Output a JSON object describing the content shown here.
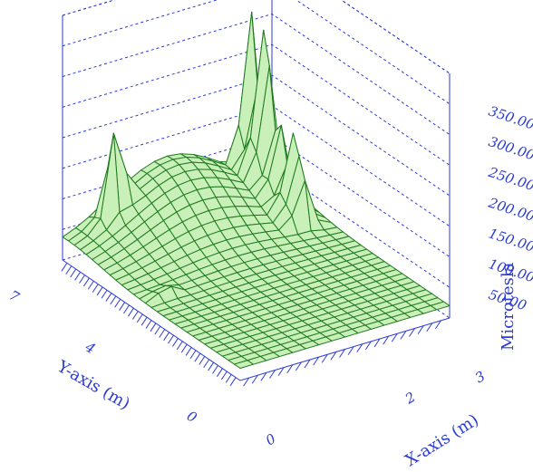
{
  "chart_data": {
    "type": "surface",
    "zlabel": "Microtesla",
    "xlabel": "X-axis (m)",
    "ylabel": "Y-axis (m)",
    "z_ticks": [
      "50.00",
      "100.00",
      "150.00",
      "200.00",
      "250.00",
      "300.00",
      "350.00"
    ],
    "x_ticks": [
      "0",
      "2",
      "3"
    ],
    "y_ticks": [
      "0",
      "4",
      "7"
    ],
    "xlim": [
      0,
      3
    ],
    "ylim": [
      0,
      7
    ],
    "zlim": [
      0,
      400
    ],
    "grid": true,
    "colors": {
      "axis": "#2b3bd6",
      "surface_line": "#1f7a1f",
      "surface_fill": "#c8f0b8"
    },
    "surface": {
      "x_steps": 16,
      "y_steps": 30,
      "baseline_uT": 20,
      "peaks": [
        {
          "x": 2.6,
          "y": 6.7,
          "z": 330
        },
        {
          "x": 2.6,
          "y": 6.2,
          "z": 360
        },
        {
          "x": 2.6,
          "y": 5.7,
          "z": 190
        },
        {
          "x": 2.6,
          "y": 5.2,
          "z": 170
        },
        {
          "x": 2.6,
          "y": 4.8,
          "z": 150
        },
        {
          "x": 0.6,
          "y": 6.6,
          "z": 180
        },
        {
          "x": 0.3,
          "y": 3.8,
          "z": 40
        }
      ],
      "ridge": {
        "x": 1.5,
        "y": 6.8,
        "z": 100
      }
    }
  }
}
